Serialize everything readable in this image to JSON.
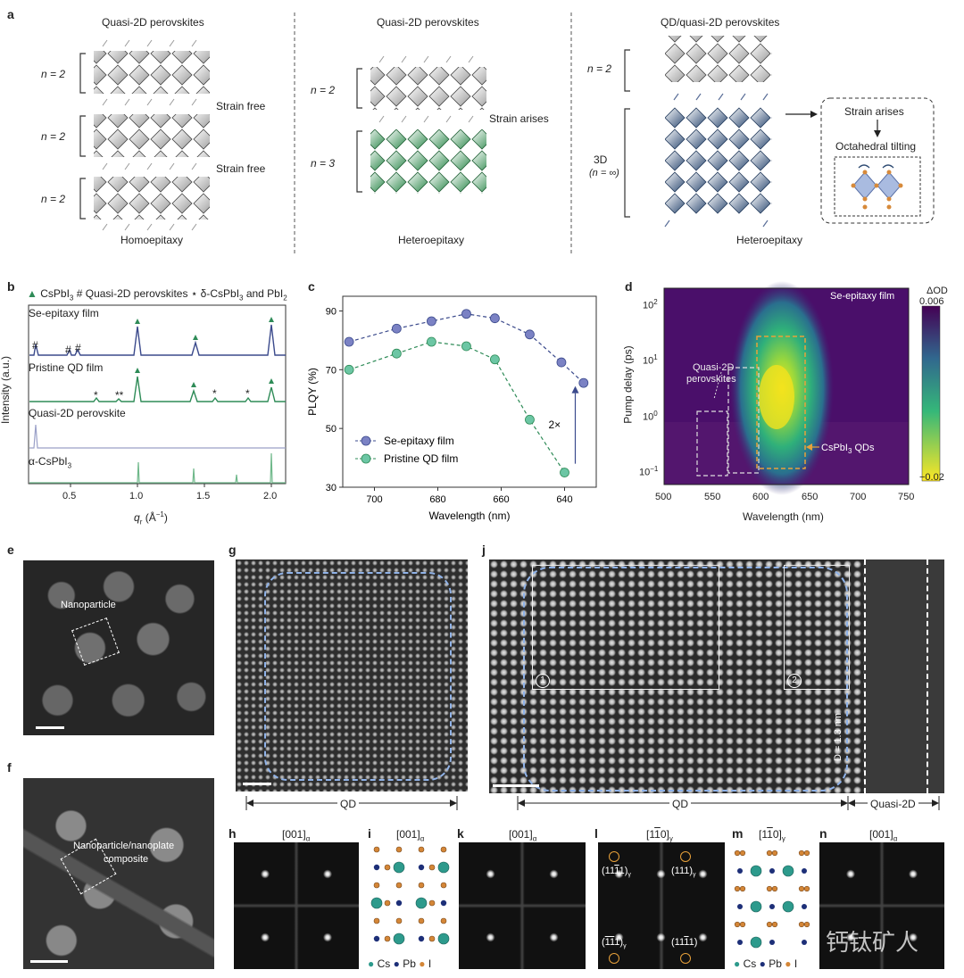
{
  "panel_a": {
    "label": "a",
    "col1": {
      "title": "Quasi-2D perovskites",
      "n_labels": [
        "n = 2",
        "n = 2",
        "n = 2"
      ],
      "notes": [
        "Strain free",
        "Strain free"
      ],
      "bottom": "Homoepitaxy"
    },
    "col2": {
      "title": "Quasi-2D perovskites",
      "n_labels": [
        "n = 2",
        "n = 3"
      ],
      "notes": [
        "Strain arises"
      ],
      "bottom": "Heteroepitaxy"
    },
    "col3": {
      "title": "QD/quasi-2D perovskites",
      "n_labels": [
        "n = 2",
        "3D",
        "(n = ∞)"
      ],
      "bottom": "Heteroepitaxy",
      "box": {
        "line1": "Strain arises",
        "line2": "Octahedral tilting"
      }
    },
    "colors": {
      "grey": "#a9a9a9",
      "green": "#2f8a4e",
      "navy": "#2d4a72"
    }
  },
  "panel_b": {
    "label": "b",
    "legend": {
      "tri": "CsPbI",
      "tri_sub": "3",
      "hash": "Quasi-2D perovskites",
      "star_pre": "δ-CsPbI",
      "star_sub1": "3",
      "star_mid": " and PbI",
      "star_sub2": "2"
    },
    "traces": [
      "Se-epitaxy film",
      "Pristine QD film",
      "Quasi-2D perovskite",
      "α-CsPbI"
    ],
    "trace4_sub": "3",
    "ylabel": "Intensity (a.u.)",
    "xlabel": "q",
    "xlabel_sub": "r",
    "xlabel_unit": " (Å",
    "xlabel_unit_sup": "−1",
    "xlabel_close": ")",
    "xticks": [
      "0.5",
      "1.0",
      "1.5",
      "2.0"
    ],
    "colors": {
      "se": "#3b4a8c",
      "qd": "#2e8b57",
      "q2d": "#9aa0c8",
      "alpha": "#6fb88a"
    }
  },
  "chart_data": {
    "type": "line",
    "panel": "c",
    "xlabel": "Wavelength (nm)",
    "ylabel": "PLQY (%)",
    "xlim": [
      710,
      630
    ],
    "ylim": [
      30,
      95
    ],
    "xticks": [
      700,
      680,
      660,
      640
    ],
    "yticks": [
      30,
      50,
      70,
      90
    ],
    "series": [
      {
        "name": "Se-epitaxy film",
        "color": "#7b82c4",
        "x": [
          708,
          693,
          682,
          671,
          662,
          651,
          641,
          634
        ],
        "y": [
          79.5,
          84,
          86.5,
          89,
          87.5,
          82,
          72.5,
          65.5
        ]
      },
      {
        "name": "Pristine QD film",
        "color": "#6cc6a4",
        "x": [
          708,
          693,
          682,
          671,
          662,
          651,
          640
        ],
        "y": [
          70,
          75.5,
          79.5,
          78,
          73.5,
          53,
          35
        ]
      }
    ],
    "annotation": "2×"
  },
  "panel_d": {
    "label": "d",
    "title": "Se-epitaxy film",
    "ylabel": "Pump delay (ps)",
    "xlabel": "Wavelength (nm)",
    "xticks": [
      "500",
      "550",
      "600",
      "650",
      "700",
      "750"
    ],
    "yticks": [
      {
        "base": "10",
        "exp": "2"
      },
      {
        "base": "10",
        "exp": "1"
      },
      {
        "base": "10",
        "exp": "0"
      },
      {
        "base": "10",
        "exp": "−1"
      }
    ],
    "cbar_title": "ΔOD",
    "cbar_max": "0.006",
    "cbar_min": "−0.02",
    "ann_q2d": "Quasi-2D",
    "ann_q2d2": "perovskites",
    "ann_qd": "CsPbI",
    "ann_qd_sub": "3",
    "ann_qd_end": " QDs"
  },
  "panel_e": {
    "label": "e",
    "ann": "Nanoparticle"
  },
  "panel_f": {
    "label": "f",
    "ann1": "Nanoparticle/nanoplate",
    "ann2": "composite"
  },
  "panel_g": {
    "label": "g",
    "bottom": "QD"
  },
  "panel_j": {
    "label": "j",
    "qd": "QD",
    "q2d": "Quasi-2D",
    "dim": "D = 1.3 nm",
    "box1": "1",
    "box2": "2"
  },
  "panel_h": {
    "label": "h",
    "title": "[001]",
    "sub": "α"
  },
  "panel_i": {
    "label": "i",
    "title": "[001]",
    "sub": "α",
    "legend": [
      "Cs",
      "Pb",
      "I"
    ]
  },
  "panel_k": {
    "label": "k",
    "title": "[001]",
    "sub": "α"
  },
  "panel_l": {
    "label": "l",
    "title": "[1",
    "bar": "1",
    "end": "0]",
    "sub": "γ",
    "spots": [
      "(11",
      "1)",
      "(111)",
      "(",
      "1",
      "1",
      "1)",
      "(11",
      "1)"
    ]
  },
  "panel_m": {
    "label": "m",
    "title": "[1",
    "bar": "1",
    "end": "0]",
    "sub": "γ",
    "legend": [
      "Cs",
      "Pb",
      "I"
    ]
  },
  "panel_n": {
    "label": "n",
    "title": "[001]",
    "sub": "α"
  },
  "watermark": "钙钛矿人"
}
